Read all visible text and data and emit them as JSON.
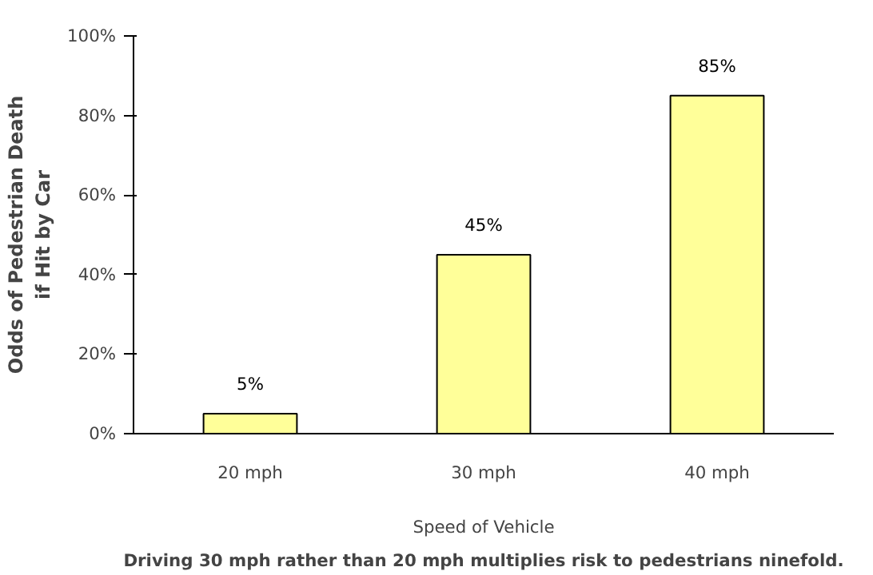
{
  "chart_data": {
    "type": "bar",
    "ylabel": "Odds of Pedestrian Death\nif Hit by Car",
    "xlabel": "Speed of Vehicle",
    "categories": [
      "20 mph",
      "30 mph",
      "40 mph"
    ],
    "values": [
      5,
      45,
      85
    ],
    "value_labels": [
      "5%",
      "45%",
      "85%"
    ],
    "color": "#ffff99",
    "ylim": [
      0,
      100
    ],
    "yticks": [
      {
        "value": 0,
        "label": "0%"
      },
      {
        "value": 20,
        "label": "20%"
      },
      {
        "value": 40,
        "label": "40%"
      },
      {
        "value": 60,
        "label": "60%"
      },
      {
        "value": 80,
        "label": "80%"
      },
      {
        "value": 100,
        "label": "100%"
      }
    ],
    "grid": false,
    "annotations": [
      "Driving 30 mph rather than 20 mph multiplies risk to pedestrians ninefold."
    ]
  }
}
